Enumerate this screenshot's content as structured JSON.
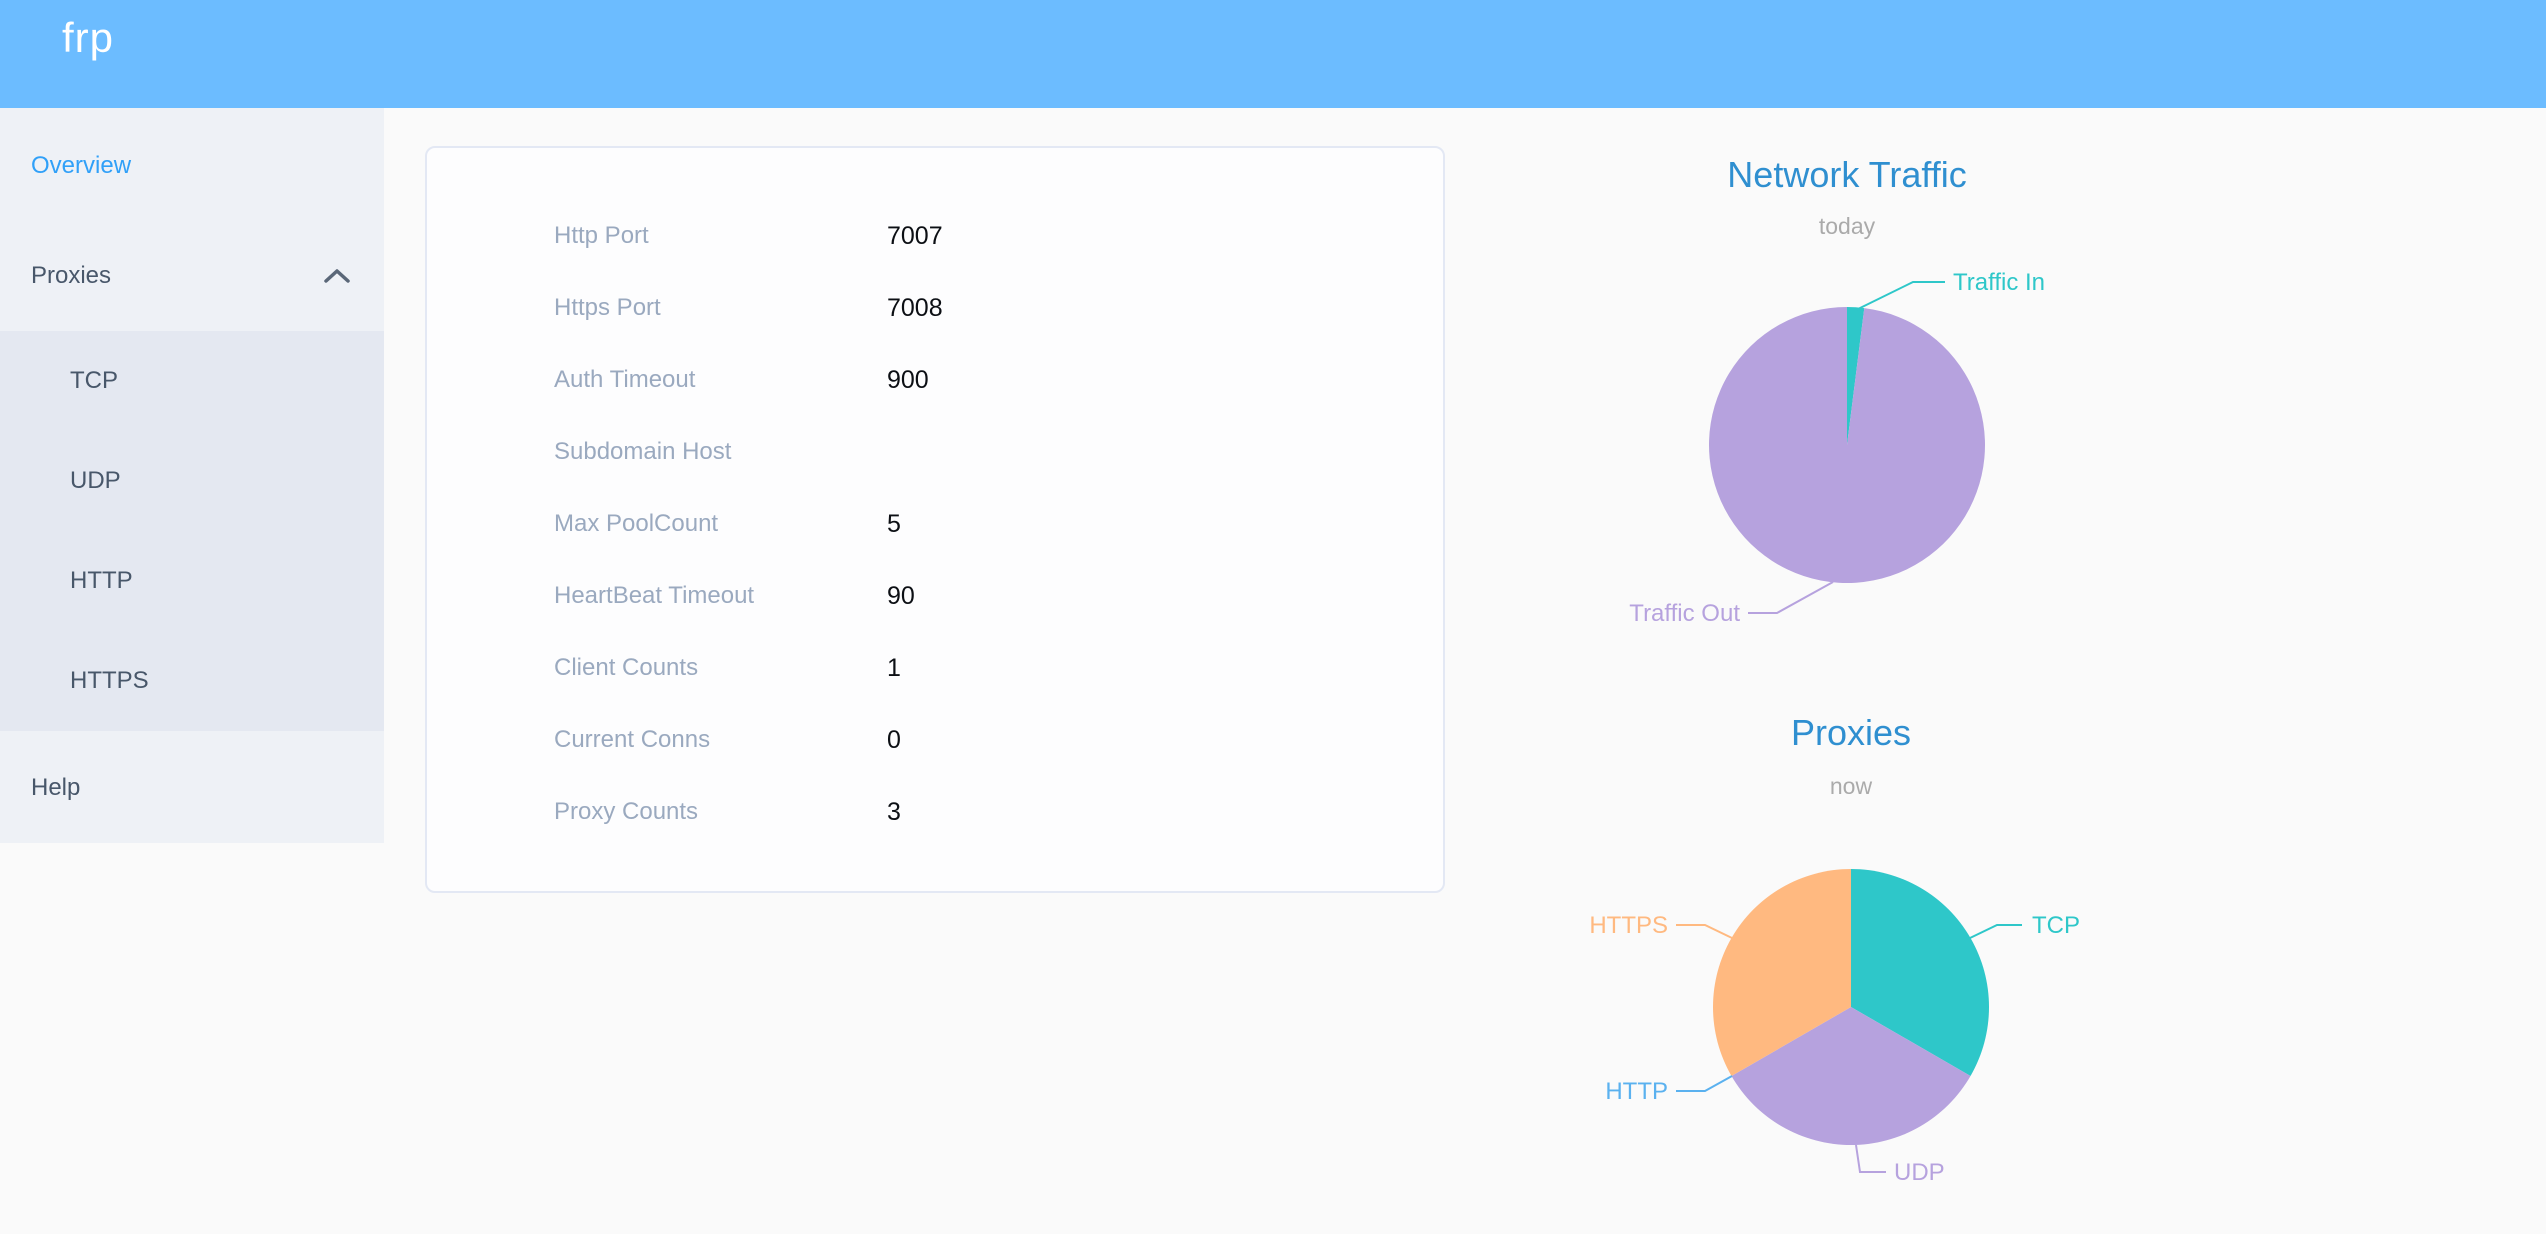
{
  "header": {
    "logo": "frp",
    "background": "#6cbcff"
  },
  "sidebar": {
    "items": [
      {
        "label": "Overview",
        "active": true
      },
      {
        "label": "Proxies",
        "expanded": true
      },
      {
        "label": "TCP"
      },
      {
        "label": "UDP"
      },
      {
        "label": "HTTP"
      },
      {
        "label": "HTTPS"
      },
      {
        "label": "Help"
      }
    ],
    "active_color": "#30a0f8"
  },
  "icons": {
    "proxies_expand": "chevron-up"
  },
  "server_info": {
    "rows": [
      {
        "label": "Http Port",
        "value": "7007"
      },
      {
        "label": "Https Port",
        "value": "7008"
      },
      {
        "label": "Auth Timeout",
        "value": "900"
      },
      {
        "label": "Subdomain Host",
        "value": ""
      },
      {
        "label": "Max PoolCount",
        "value": "5"
      },
      {
        "label": "HeartBeat Timeout",
        "value": "90"
      },
      {
        "label": "Client Counts",
        "value": "1"
      },
      {
        "label": "Current Conns",
        "value": "0"
      },
      {
        "label": "Proxy Counts",
        "value": "3"
      }
    ]
  },
  "chart_data": [
    {
      "type": "pie",
      "title": "Network Traffic",
      "subtitle": "today",
      "legend_position": "callout-labels",
      "series": [
        {
          "name": "Traffic In",
          "value": 2,
          "color": "#2ec7c9"
        },
        {
          "name": "Traffic Out",
          "value": 98,
          "color": "#b6a2de"
        }
      ],
      "note": "values are estimated percentages of pie area"
    },
    {
      "type": "pie",
      "title": "Proxies",
      "subtitle": "now",
      "legend_position": "callout-labels",
      "series": [
        {
          "name": "TCP",
          "value": 1,
          "color": "#2ec7c9"
        },
        {
          "name": "UDP",
          "value": 1,
          "color": "#b6a2de"
        },
        {
          "name": "HTTP",
          "value": 0,
          "color": "#5ab1ef"
        },
        {
          "name": "HTTPS",
          "value": 1,
          "color": "#ffb980"
        }
      ]
    }
  ],
  "colors": {
    "title_blue": "#2f8fd0",
    "subtitle_gray": "#aaaaaa",
    "sidebar_bg": "#eef1f6",
    "submenu_bg": "#e4e8f1",
    "page_bg": "#fafafa"
  }
}
